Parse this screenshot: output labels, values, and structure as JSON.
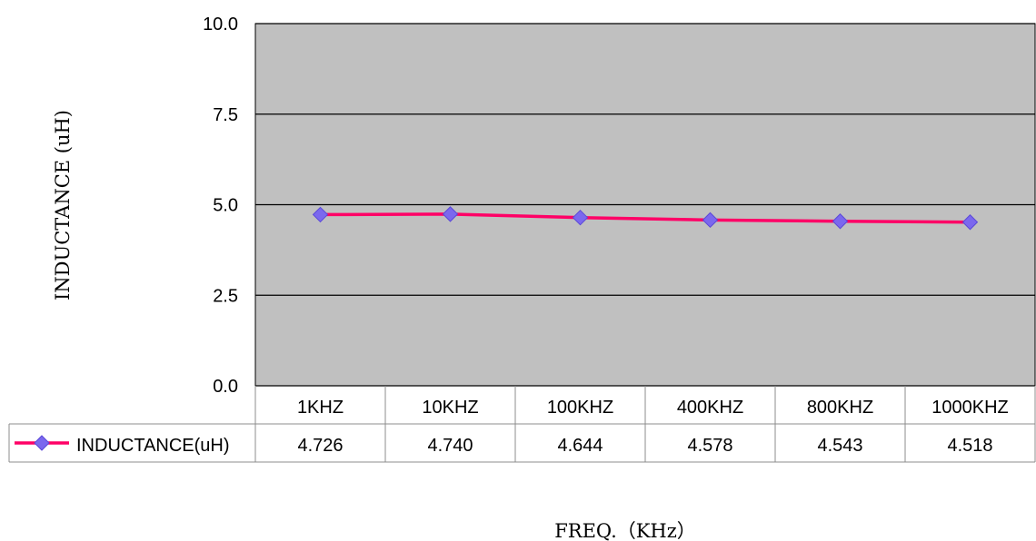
{
  "chart_data": {
    "type": "line",
    "title": "",
    "xlabel": "FREQ.（KHz）",
    "ylabel": "INDUCTANCE (uH)",
    "ylim": [
      0,
      10
    ],
    "yticks": [
      "0.0",
      "2.5",
      "5.0",
      "7.5",
      "10.0"
    ],
    "grid": true,
    "legend": "data-table-left",
    "categories": [
      "1KHZ",
      "10KHZ",
      "100KHZ",
      "400KHZ",
      "800KHZ",
      "1000KHZ"
    ],
    "series": [
      {
        "name": "INDUCTANCE(uH)",
        "values": [
          4.726,
          4.74,
          4.644,
          4.578,
          4.543,
          4.518
        ],
        "labels": [
          "4.726",
          "4.740",
          "4.644",
          "4.578",
          "4.543",
          "4.518"
        ],
        "color": "#ff0066",
        "marker_color": "#7b68ee"
      }
    ],
    "plot_background": "#c0c0c0"
  }
}
